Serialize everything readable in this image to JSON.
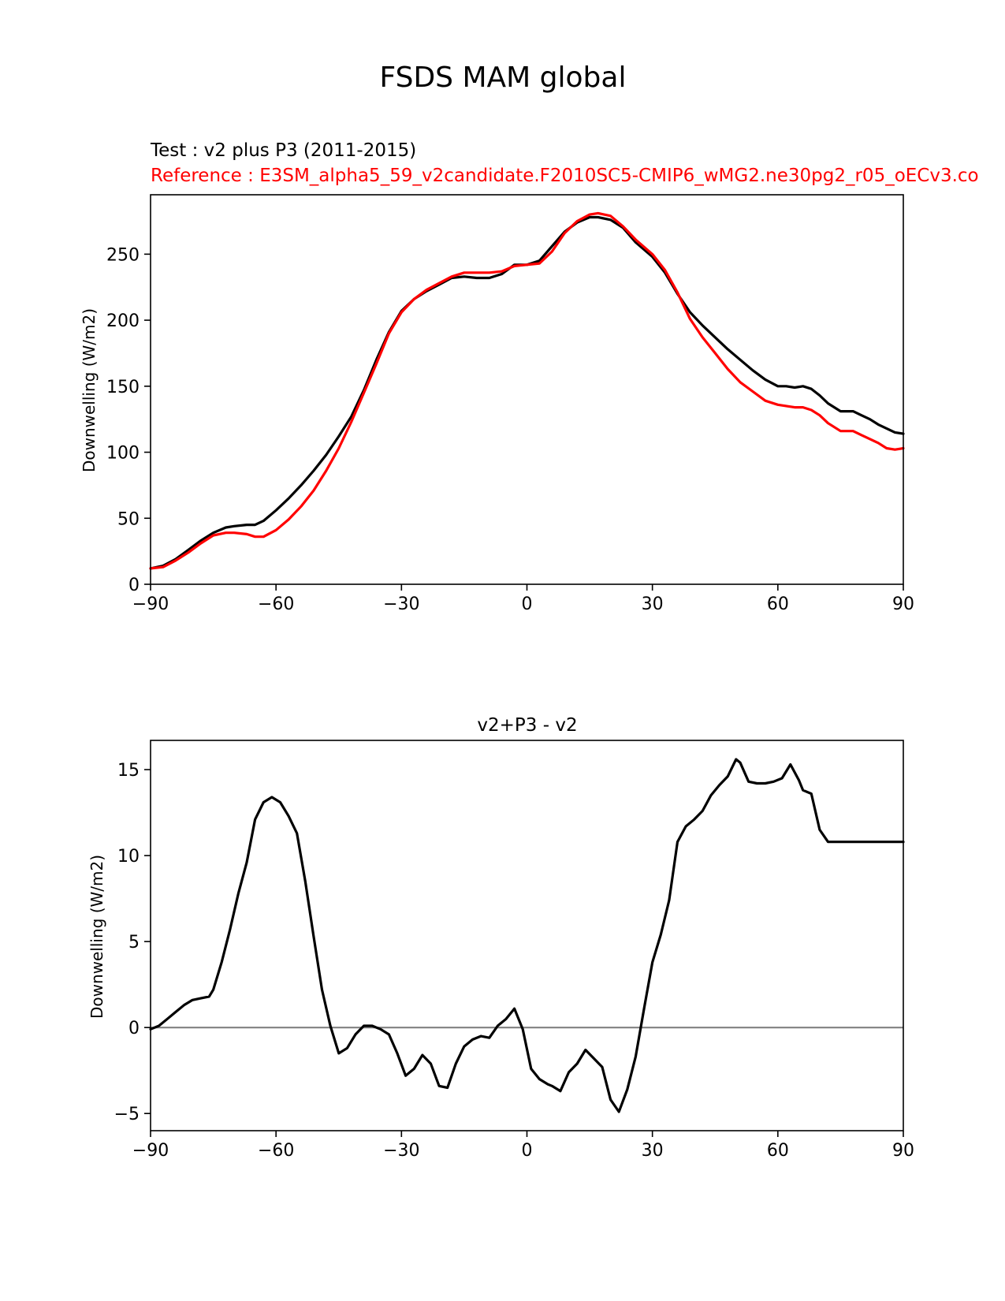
{
  "figure_title": "FSDS MAM global",
  "colors": {
    "test": "#000000",
    "reference": "#ff0000",
    "zero_line": "#808080",
    "axes": "#000000"
  },
  "chart_data": [
    {
      "type": "line",
      "id": "top",
      "title_test": "Test : v2 plus P3 (2011-2015)",
      "title_reference": "Reference : E3SM_alpha5_59_v2candidate.F2010SC5-CMIP6_wMG2.ne30pg2_r05_oECv3.co",
      "xlabel": "",
      "ylabel": "Downwelling (W/m2)",
      "xlim": [
        -90,
        90
      ],
      "ylim": [
        0,
        295
      ],
      "xticks": [
        -90,
        -60,
        -30,
        0,
        30,
        60,
        90
      ],
      "xtick_labels": [
        "−90",
        "−60",
        "−30",
        "0",
        "30",
        "60",
        "90"
      ],
      "yticks": [
        0,
        50,
        100,
        150,
        200,
        250
      ],
      "ytick_labels": [
        "0",
        "50",
        "100",
        "150",
        "200",
        "250"
      ],
      "series": [
        {
          "name": "test",
          "color": "#000000",
          "x": [
            -90,
            -87,
            -84,
            -81,
            -78,
            -75,
            -72,
            -70,
            -67,
            -65,
            -63,
            -60,
            -57,
            -54,
            -51,
            -48,
            -45,
            -42,
            -39,
            -36,
            -33,
            -30,
            -27,
            -24,
            -21,
            -18,
            -15,
            -12,
            -9,
            -6,
            -3,
            0,
            3,
            6,
            9,
            12,
            15,
            17,
            20,
            23,
            26,
            30,
            33,
            36,
            39,
            42,
            45,
            48,
            51,
            54,
            57,
            60,
            62,
            64,
            66,
            68,
            70,
            72,
            75,
            78,
            80,
            82,
            84,
            86,
            88,
            90
          ],
          "y": [
            12,
            14,
            19,
            26,
            33,
            39,
            43,
            44,
            45,
            45,
            48,
            56,
            65,
            75,
            86,
            98,
            112,
            127,
            147,
            170,
            191,
            207,
            216,
            222,
            227,
            232,
            233,
            232,
            232,
            235,
            242,
            242,
            245,
            256,
            267,
            274,
            278,
            278,
            276,
            270,
            259,
            248,
            236,
            220,
            206,
            196,
            187,
            178,
            170,
            162,
            155,
            150,
            150,
            149,
            150,
            148,
            143,
            137,
            131,
            131,
            128,
            125,
            121,
            118,
            115,
            114
          ]
        },
        {
          "name": "reference",
          "color": "#ff0000",
          "x": [
            -90,
            -87,
            -84,
            -81,
            -78,
            -75,
            -72,
            -70,
            -67,
            -65,
            -63,
            -60,
            -57,
            -54,
            -51,
            -48,
            -45,
            -42,
            -39,
            -36,
            -33,
            -30,
            -27,
            -24,
            -21,
            -18,
            -15,
            -12,
            -9,
            -6,
            -3,
            0,
            3,
            6,
            9,
            12,
            15,
            17,
            20,
            23,
            26,
            30,
            33,
            36,
            39,
            42,
            45,
            48,
            51,
            54,
            57,
            60,
            62,
            64,
            66,
            68,
            70,
            72,
            75,
            78,
            80,
            82,
            84,
            86,
            88,
            90
          ],
          "y": [
            12,
            13,
            18,
            24,
            31,
            37,
            39,
            39,
            38,
            36,
            36,
            41,
            49,
            59,
            71,
            86,
            103,
            123,
            145,
            167,
            190,
            206,
            216,
            223,
            228,
            233,
            236,
            236,
            236,
            237,
            241,
            242,
            243,
            252,
            266,
            275,
            280,
            281,
            279,
            271,
            261,
            250,
            238,
            221,
            201,
            187,
            175,
            163,
            153,
            146,
            139,
            136,
            135,
            134,
            134,
            132,
            128,
            122,
            116,
            116,
            113,
            110,
            107,
            103,
            102,
            103
          ]
        }
      ]
    },
    {
      "type": "line",
      "id": "bottom",
      "title": "v2+P3 - v2",
      "xlabel": "",
      "ylabel": "Downwelling (W/m2)",
      "xlim": [
        -90,
        90
      ],
      "ylim": [
        -6,
        16.7
      ],
      "xticks": [
        -90,
        -60,
        -30,
        0,
        30,
        60,
        90
      ],
      "xtick_labels": [
        "−90",
        "−60",
        "−30",
        "0",
        "30",
        "60",
        "90"
      ],
      "yticks": [
        -5,
        0,
        5,
        10,
        15
      ],
      "ytick_labels": [
        "−5",
        "0",
        "5",
        "10",
        "15"
      ],
      "zero_line": 0,
      "series": [
        {
          "name": "difference",
          "color": "#000000",
          "x": [
            -90,
            -88,
            -86,
            -84,
            -82,
            -80,
            -78,
            -76,
            -75,
            -73,
            -71,
            -69,
            -67,
            -65,
            -63,
            -61,
            -59,
            -57,
            -55,
            -53,
            -51,
            -49,
            -47,
            -45,
            -43,
            -41,
            -39,
            -37,
            -35,
            -33,
            -31,
            -29,
            -27,
            -25,
            -23,
            -21,
            -19,
            -17,
            -15,
            -13,
            -11,
            -9,
            -7,
            -5,
            -3,
            -1,
            1,
            3,
            5,
            6,
            8,
            10,
            12,
            14,
            16,
            18,
            20,
            22,
            24,
            26,
            28,
            30,
            32,
            34,
            36,
            38,
            40,
            42,
            44,
            46,
            48,
            50,
            51,
            53,
            55,
            57,
            59,
            61,
            63,
            65,
            66,
            68,
            70,
            72,
            74,
            76,
            78,
            80,
            82,
            84,
            86,
            88,
            90
          ],
          "y": [
            -0.1,
            0.1,
            0.5,
            0.9,
            1.3,
            1.6,
            1.7,
            1.8,
            2.2,
            3.8,
            5.7,
            7.8,
            9.6,
            12.1,
            13.1,
            13.4,
            13.1,
            12.3,
            11.3,
            8.5,
            5.3,
            2.2,
            0.1,
            -1.5,
            -1.2,
            -0.4,
            0.1,
            0.1,
            -0.1,
            -0.4,
            -1.5,
            -2.8,
            -2.4,
            -1.6,
            -2.1,
            -3.4,
            -3.5,
            -2.1,
            -1.1,
            -0.7,
            -0.5,
            -0.6,
            0.1,
            0.5,
            1.1,
            -0.1,
            -2.4,
            -3.0,
            -3.3,
            -3.4,
            -3.7,
            -2.6,
            -2.1,
            -1.3,
            -1.8,
            -2.3,
            -4.2,
            -4.9,
            -3.6,
            -1.7,
            1.1,
            3.8,
            5.4,
            7.4,
            10.8,
            11.7,
            12.1,
            12.6,
            13.5,
            14.1,
            14.6,
            15.6,
            15.4,
            14.3,
            14.2,
            14.2,
            14.3,
            14.5,
            15.3,
            14.4,
            13.8,
            13.6,
            11.5,
            10.8,
            10.8,
            10.8,
            10.8,
            10.8,
            10.8,
            10.8,
            10.8,
            10.8,
            10.8
          ]
        }
      ]
    }
  ]
}
